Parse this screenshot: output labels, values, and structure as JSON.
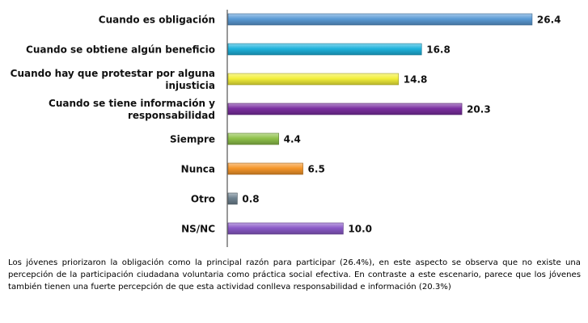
{
  "chart_data": {
    "type": "bar",
    "orientation": "horizontal",
    "categories": [
      [
        "Cuando es obligación"
      ],
      [
        "Cuando se obtiene algún beneficio"
      ],
      [
        "Cuando hay que protestar por alguna",
        "injusticia"
      ],
      [
        "Cuando se tiene información y",
        "responsabilidad"
      ],
      [
        "Siempre"
      ],
      [
        "Nunca"
      ],
      [
        "Otro"
      ],
      [
        "NS/NC"
      ]
    ],
    "values": [
      26.4,
      16.8,
      14.8,
      20.3,
      4.4,
      6.5,
      0.8,
      10.0
    ],
    "value_labels": [
      "26.4",
      "16.8",
      "14.8",
      "20.3",
      "4.4",
      "6.5",
      "0.8",
      "10.0"
    ],
    "colors": [
      "#5b9bd5",
      "#1fb3dc",
      "#f2ef3a",
      "#7a2fa0",
      "#8fc14a",
      "#f5962a",
      "#6f8391",
      "#8b5ac8"
    ],
    "xlim": [
      0,
      28
    ],
    "grid": false,
    "legend": "none"
  },
  "caption": "Los jóvenes priorizaron la obligación como la principal razón para participar (26.4%), en este aspecto se observa que no existe una percepción de la participación ciudadana voluntaria como práctica social efectiva. En contraste a este escenario, parece que los jóvenes también tienen una fuerte percepción de que esta actividad conlleva responsabilidad e información (20.3%)"
}
